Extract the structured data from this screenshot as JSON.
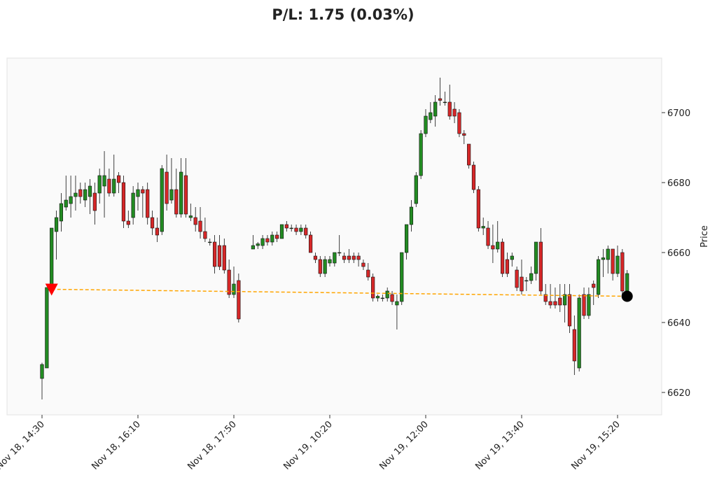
{
  "chart_data": {
    "type": "candlestick",
    "title": "P/L: 1.75 (0.03%)",
    "y_label": "Price",
    "xlim": [
      -7.3,
      129.2
    ],
    "ylim": [
      6613.6,
      6715.6
    ],
    "xticks": [
      {
        "value": 0,
        "label": "Nov 18, 14:30"
      },
      {
        "value": 20,
        "label": "Nov 18, 16:10"
      },
      {
        "value": 40,
        "label": "Nov 18, 17:50"
      },
      {
        "value": 60,
        "label": "Nov 19, 10:20"
      },
      {
        "value": 80,
        "label": "Nov 19, 12:00"
      },
      {
        "value": 100,
        "label": "Nov 19, 13:40"
      },
      {
        "value": 120,
        "label": "Nov 19, 15:20"
      }
    ],
    "yticks": [
      6620,
      6640,
      6660,
      6680,
      6700
    ],
    "up_color": "#228b22",
    "down_color": "#d62728",
    "open": [
      6624,
      6627,
      6650,
      6666,
      6669,
      6673,
      6674,
      6676,
      6678,
      6675,
      6676,
      6677,
      6677,
      6679,
      6681,
      6677,
      6682,
      6680,
      6669,
      6670,
      6676,
      6678,
      6678,
      6670,
      6667,
      6666,
      6683,
      6675,
      6678,
      6671,
      6682,
      6670,
      6670,
      6669,
      6666,
      6663,
      6663,
      6662,
      6662,
      6655,
      6648,
      6652,
      null,
      null,
      6661,
      6662,
      6662,
      6664,
      6663,
      6665,
      6664,
      6668,
      6667,
      6667,
      6666,
      6667,
      6665,
      6659,
      6658,
      6654,
      6657,
      6657,
      6660,
      6659,
      6659,
      6659,
      6659,
      6657,
      6655,
      6653,
      6647,
      6647,
      6647,
      6648,
      6645,
      6646,
      6660,
      6668,
      6674,
      6682,
      6694,
      6698,
      6699,
      6704,
      6703,
      6703,
      6701,
      6700,
      6694,
      6691,
      6685,
      6678,
      6667,
      6667,
      6662,
      6661,
      6663,
      6658,
      6658,
      6655,
      6653,
      6652,
      6652,
      6654,
      6663,
      6648,
      6646,
      6646,
      6647,
      6645,
      6648,
      6638,
      6627,
      6648,
      6642,
      6651,
      6648,
      6658,
      6658,
      6661,
      6654,
      6660,
      6649
    ],
    "high": [
      6628.5,
      6650,
      6667,
      6672,
      6677,
      6682,
      6682,
      6682,
      6680,
      6680,
      6681,
      6680,
      6684,
      6689,
      6684,
      6688,
      6683,
      6682,
      6672,
      6679,
      6680,
      6679,
      6680,
      6672,
      6670,
      6685,
      6688,
      6687,
      6684,
      6687,
      6687,
      6674,
      6673,
      6673,
      6670,
      6664,
      6665,
      6665,
      6664,
      6658,
      6656,
      6654,
      null,
      null,
      6665,
      6663,
      6665,
      6665,
      6666,
      6666,
      6668,
      6669,
      6668,
      6668,
      6668,
      6668,
      6666,
      6660,
      6659,
      6659,
      6659,
      6660,
      6665,
      6660,
      6661,
      6660,
      6660,
      6658,
      6657,
      6654,
      6648,
      6648,
      6650,
      6649,
      6648,
      6660,
      6668,
      6675,
      6683,
      6695,
      6701,
      6703,
      6705,
      6710,
      6706,
      6708,
      6703,
      6701,
      6695,
      6691,
      6686,
      6679,
      6670,
      6669,
      6668,
      6669,
      6664,
      6660,
      6660,
      6656,
      6658,
      6653,
      6656,
      6663,
      6667,
      6651,
      6651,
      6650,
      6651,
      6651,
      6651,
      6642,
      6648,
      6650,
      6650,
      6652,
      6659,
      6661,
      6662,
      6661,
      6662,
      6661,
      6655
    ],
    "low": [
      6618,
      6627,
      6648,
      6658,
      6666,
      6672,
      6670,
      6672,
      6674,
      6673,
      6671,
      6668,
      6674,
      6670,
      6676,
      6676,
      6677,
      6667,
      6667,
      6668,
      6672,
      6670,
      6668,
      6665,
      6663,
      6665,
      6672,
      6674,
      6670,
      6670,
      6670,
      6669,
      6666,
      6664,
      6663,
      6662,
      6654,
      6655,
      6654,
      6647,
      6647,
      6640,
      null,
      null,
      6661,
      6661,
      6661,
      6662,
      6662,
      6663,
      6664,
      6666,
      6666,
      6665,
      6665,
      6664,
      6660,
      6657,
      6653,
      6653,
      6656,
      6656,
      6659,
      6657,
      6657,
      6657,
      6656,
      6655,
      6652,
      6646,
      6646,
      6646,
      6646,
      6645,
      6638,
      6645,
      6658,
      6666,
      6673,
      6681,
      6693,
      6697,
      6696,
      6702,
      6702,
      6698,
      6697,
      6693,
      6691,
      6684,
      6677,
      6666,
      6665,
      6661,
      6657,
      6660,
      6653,
      6653,
      6656,
      6649,
      6648,
      6649,
      6651,
      6652,
      6648,
      6645,
      6644,
      6644,
      6643,
      6640,
      6637,
      6625,
      6626,
      6641,
      6641,
      6645,
      6647,
      6653,
      6654,
      6652,
      6653,
      6648,
      6648
    ],
    "close": [
      6628,
      6650,
      6667,
      6670,
      6674,
      6675,
      6676,
      6677,
      6676,
      6678,
      6679,
      6672,
      6682,
      6682,
      6677,
      6681,
      6680,
      6669,
      6668,
      6677,
      6678,
      6677,
      6670,
      6667,
      6665,
      6684,
      6674,
      6678,
      6671,
      6683,
      6671,
      6670.5,
      6668,
      6666,
      6664,
      6663,
      6656,
      6656,
      6655,
      6648,
      6651,
      6641,
      null,
      null,
      6662,
      6662.5,
      6664,
      6663,
      6665,
      6664,
      6668,
      6667,
      6667,
      6666,
      6667,
      6665,
      6660,
      6658,
      6654,
      6658,
      6658,
      6660,
      6660,
      6658,
      6658,
      6658,
      6658,
      6656,
      6653,
      6647,
      6647.5,
      6647,
      6649,
      6646,
      6646,
      6660,
      6668,
      6673,
      6682,
      6694,
      6699,
      6700,
      6703,
      6703.5,
      6703,
      6699,
      6699,
      6694,
      6693.5,
      6685,
      6678,
      6667,
      6667.5,
      6662,
      6661,
      6663,
      6654,
      6654,
      6659,
      6650,
      6649,
      6652,
      6654,
      6663,
      6649,
      6646,
      6645,
      6645,
      6645,
      6648,
      6639,
      6629,
      6647,
      6642,
      6648,
      6650,
      6658,
      6658.5,
      6661,
      6654,
      6659,
      6649,
      6654
    ],
    "entry": {
      "x": 2,
      "price": 6649.5,
      "color": "#ff0000"
    },
    "exit": {
      "x": 122,
      "price": 6647.5,
      "color": "#000000"
    },
    "trade_line_color": "#ffa500"
  }
}
